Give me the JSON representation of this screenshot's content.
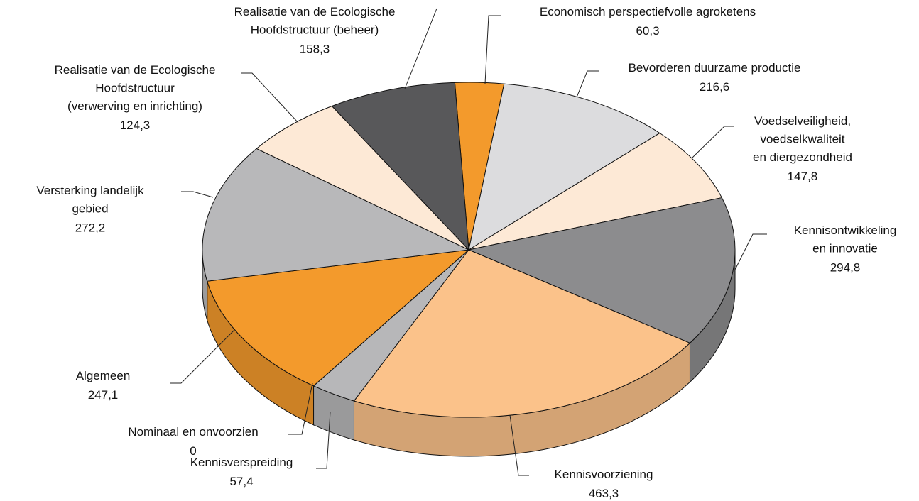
{
  "chart_data": {
    "type": "pie3d",
    "categories": [
      "Economisch perspectiefvolle agroketens",
      "Bevorderen duurzame productie",
      "Voedselveiligheid,\nvoedselkwaliteit\nen diergezondheid",
      "Kennisontwikkeling\nen innovatie",
      "Kennisvoorziening",
      "Kennisverspreiding",
      "Nominaal en onvoorzien",
      "Algemeen",
      "Versterking landelijk\ngebied",
      "Realisatie van de Ecologische\nHoofdstructuur\n(verwerving en inrichting)",
      "Realisatie van de Ecologische\nHoofdstructuur (beheer)"
    ],
    "values": [
      60.3,
      216.6,
      147.8,
      294.8,
      463.3,
      57.4,
      0,
      247.1,
      272.2,
      124.3,
      158.3
    ],
    "value_labels": [
      "60,3",
      "216,6",
      "147,8",
      "294,8",
      "463,3",
      "57,4",
      "0",
      "247,1",
      "272,2",
      "124,3",
      "158,3"
    ],
    "colors": [
      "#f39a2c",
      "#dcdcde",
      "#fde9d6",
      "#8c8c8e",
      "#fbc28a",
      "#b7b7b9",
      "#9a9a9c",
      "#f39a2c",
      "#b8b8ba",
      "#fde9d6",
      "#58585a"
    ]
  }
}
